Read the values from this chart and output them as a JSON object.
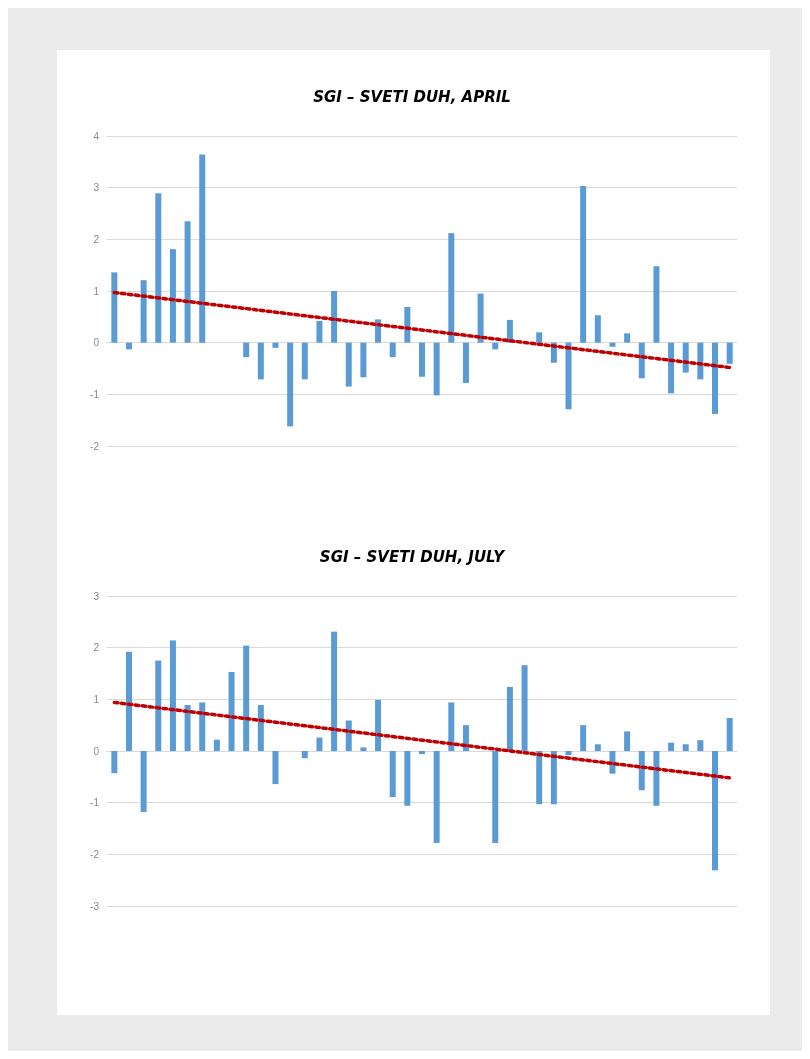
{
  "chart_data": [
    {
      "type": "bar",
      "title": "SGI – SVETI DUH, APRIL",
      "categories": [
        null,
        null,
        null,
        null,
        null,
        null,
        null,
        null,
        null,
        null,
        null,
        null,
        null,
        null,
        null,
        null,
        null,
        null,
        null,
        null,
        null,
        null,
        null,
        null,
        null,
        null,
        null,
        null,
        null,
        null,
        null,
        null,
        null,
        null,
        null,
        null,
        null,
        null,
        null,
        null,
        null,
        null,
        null
      ],
      "series": [
        {
          "color": "#5b9bd5",
          "values": [
            1.36,
            -0.13,
            1.21,
            2.89,
            1.81,
            2.35,
            3.64,
            0,
            0,
            -0.28,
            -0.71,
            -0.1,
            -1.62,
            -0.71,
            0.42,
            1.0,
            -0.85,
            -0.67,
            0.45,
            -0.28,
            0.69,
            -0.66,
            -1.02,
            2.12,
            -0.78,
            0.95,
            -0.13,
            0.44,
            0,
            0.2,
            -0.39,
            -1.29,
            3.03,
            0.53,
            -0.08,
            0.18,
            -0.69,
            1.48,
            -0.98,
            -0.58,
            -0.71,
            -1.38,
            -0.41
          ]
        },
        {
          "type": "line",
          "color": "#c00000",
          "line_style": "dotted",
          "values": [
            0.97,
            null,
            null,
            null,
            null,
            null,
            null,
            null,
            null,
            null,
            null,
            null,
            null,
            null,
            null,
            null,
            null,
            null,
            null,
            null,
            null,
            null,
            null,
            null,
            null,
            null,
            null,
            null,
            null,
            null,
            null,
            null,
            null,
            null,
            null,
            null,
            null,
            null,
            null,
            null,
            null,
            null,
            -0.48
          ]
        }
      ],
      "ylim": [
        -2,
        4
      ],
      "yticks": [
        -2,
        -1,
        0,
        1,
        2,
        3,
        4
      ],
      "grid": "y",
      "tick_labels": "y"
    },
    {
      "type": "bar",
      "title": "SGI – SVETI DUH, JULY",
      "categories": [
        null,
        null,
        null,
        null,
        null,
        null,
        null,
        null,
        null,
        null,
        null,
        null,
        null,
        null,
        null,
        null,
        null,
        null,
        null,
        null,
        null,
        null,
        null,
        null,
        null,
        null,
        null,
        null,
        null,
        null,
        null,
        null,
        null,
        null,
        null,
        null,
        null,
        null,
        null,
        null,
        null,
        null,
        null
      ],
      "series": [
        {
          "color": "#5b9bd5",
          "values": [
            -0.43,
            1.92,
            -1.18,
            1.75,
            2.14,
            0.89,
            0.94,
            0.22,
            1.53,
            2.04,
            0.89,
            -0.64,
            0,
            -0.14,
            0.26,
            2.31,
            0.59,
            0.07,
            0.99,
            -0.89,
            -1.06,
            -0.06,
            -1.78,
            0.94,
            0.5,
            0,
            -1.78,
            1.24,
            1.66,
            -1.03,
            -1.03,
            -0.08,
            0.5,
            0.13,
            -0.44,
            0.38,
            -0.76,
            -1.06,
            0.16,
            0.13,
            0.21,
            -2.31,
            0.64
          ]
        },
        {
          "type": "line",
          "color": "#c00000",
          "line_style": "dotted",
          "values": [
            0.94,
            null,
            null,
            null,
            null,
            null,
            null,
            null,
            null,
            null,
            null,
            null,
            null,
            null,
            null,
            null,
            null,
            null,
            null,
            null,
            null,
            null,
            null,
            null,
            null,
            null,
            null,
            null,
            null,
            null,
            null,
            null,
            null,
            null,
            null,
            null,
            null,
            null,
            null,
            null,
            null,
            null,
            -0.52
          ]
        }
      ],
      "ylim": [
        -3,
        3
      ],
      "yticks": [
        -3,
        -2,
        -1,
        0,
        1,
        2,
        3
      ],
      "grid": "y",
      "tick_labels": "y"
    }
  ]
}
